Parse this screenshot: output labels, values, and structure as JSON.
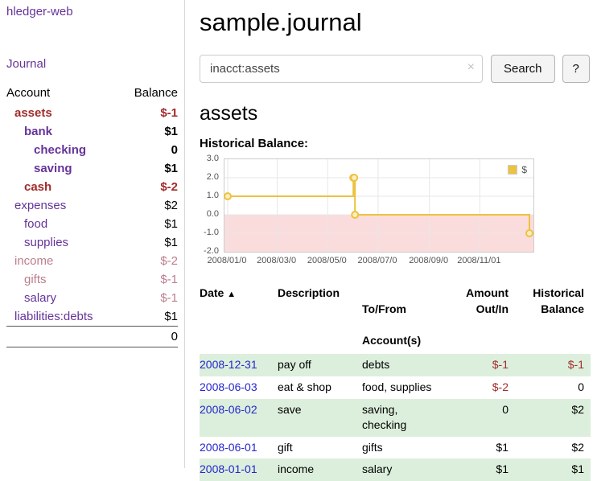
{
  "app": {
    "title": "hledger-web",
    "nav_journal": "Journal"
  },
  "sidebar": {
    "account_header": "Account",
    "balance_header": "Balance",
    "accounts": [
      {
        "name": "assets",
        "balance": "$-1"
      },
      {
        "name": "bank",
        "balance": "$1"
      },
      {
        "name": "checking",
        "balance": "0"
      },
      {
        "name": "saving",
        "balance": "$1"
      },
      {
        "name": "cash",
        "balance": "$-2"
      },
      {
        "name": "expenses",
        "balance": "$2"
      },
      {
        "name": "food",
        "balance": "$1"
      },
      {
        "name": "supplies",
        "balance": "$1"
      },
      {
        "name": "income",
        "balance": "$-2"
      },
      {
        "name": "gifts",
        "balance": "$-1"
      },
      {
        "name": "salary",
        "balance": "$-1"
      },
      {
        "name": "liabilities:debts",
        "balance": "$1"
      }
    ],
    "total": "0"
  },
  "main": {
    "title": "sample.journal",
    "search": {
      "value": "inacct:assets",
      "clear": "×",
      "button": "Search",
      "help": "?"
    },
    "account_title": "assets",
    "chart_label": "Historical Balance:"
  },
  "chart_data": {
    "type": "line",
    "step": true,
    "title": "Historical Balance",
    "series": [
      {
        "name": "$",
        "color": "#edc240",
        "points": [
          [
            "2008-01-01",
            1.0
          ],
          [
            "2008-06-01",
            2.0
          ],
          [
            "2008-06-02",
            2.0
          ],
          [
            "2008-06-03",
            0.0
          ],
          [
            "2008-12-31",
            -1.0
          ]
        ]
      }
    ],
    "ylim": [
      -2.0,
      3.0
    ],
    "y_ticks": [
      "3.0",
      "2.0",
      "1.0",
      "0.0",
      "-1.0",
      "-2.0"
    ],
    "x_tick_labels": [
      "2008/01/0",
      "2008/03/0",
      "2008/05/0",
      "2008/07/0",
      "2008/09/0",
      "2008/11/01"
    ],
    "x_tick_days": [
      0,
      60,
      121,
      182,
      244,
      305
    ],
    "days_in_range": 366,
    "legend": {
      "label": "$",
      "position": "top-right"
    },
    "negative_band_color": "#fbdcdc",
    "grid": true
  },
  "register": {
    "headers": {
      "date": "Date",
      "sort_arrow": "▲",
      "description": "Description",
      "accounts_line1": "To/From",
      "accounts_line2": "Account(s)",
      "amount_line1": "Amount",
      "amount_line2": "Out/In",
      "balance_line1": "Historical",
      "balance_line2": "Balance"
    },
    "rows": [
      {
        "date": "2008-12-31",
        "description": "pay off",
        "accounts": "debts",
        "amount": "$-1",
        "balance": "$-1"
      },
      {
        "date": "2008-06-03",
        "description": "eat & shop",
        "accounts": "food, supplies",
        "amount": "$-2",
        "balance": "0"
      },
      {
        "date": "2008-06-02",
        "description": "save",
        "accounts": "saving,\nchecking",
        "amount": "0",
        "balance": "$2"
      },
      {
        "date": "2008-06-01",
        "description": "gift",
        "accounts": "gifts",
        "amount": "$1",
        "balance": "$2"
      },
      {
        "date": "2008-01-01",
        "description": "income",
        "accounts": "salary",
        "amount": "$1",
        "balance": "$1"
      }
    ]
  },
  "colors": {
    "link_purple": "#663399",
    "negative_red": "#a22c2c",
    "faded_red": "#bb7e8c",
    "date_link_blue": "#2525cf",
    "row_stripe_green": "#dcefdc",
    "chart_series_gold": "#edc240",
    "chart_negative_band": "#fbdcdc"
  }
}
